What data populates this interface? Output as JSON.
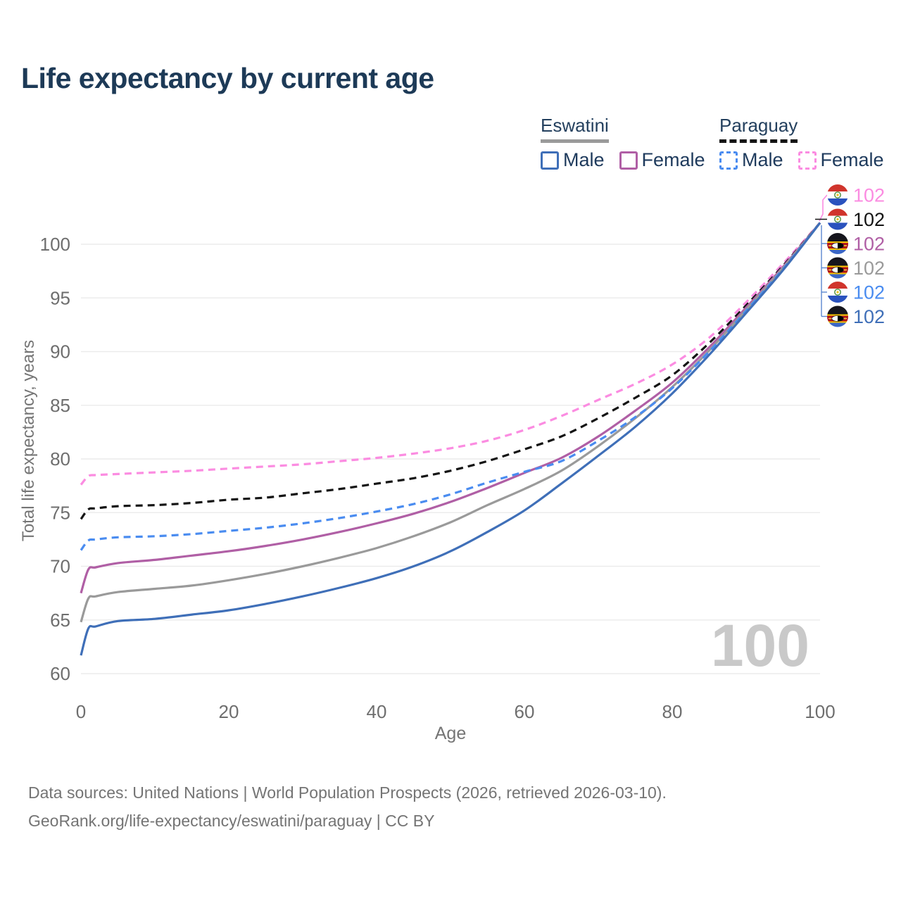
{
  "title": "Life expectancy by current age",
  "legend": {
    "groups": [
      {
        "country": "Eswatini",
        "line_style": "solid",
        "underline_color": "#9a9a9a",
        "items": [
          {
            "label": "Male",
            "color": "#3f6fb8",
            "dashed": false
          },
          {
            "label": "Female",
            "color": "#b05fa5",
            "dashed": false
          }
        ]
      },
      {
        "country": "Paraguay",
        "line_style": "dashed",
        "underline_color": "#141414",
        "items": [
          {
            "label": "Male",
            "color": "#4a8cf0",
            "dashed": true
          },
          {
            "label": "Female",
            "color": "#fb8ce1",
            "dashed": true
          }
        ]
      }
    ]
  },
  "chart_data": {
    "type": "line",
    "title": "Life expectancy by current age",
    "xlabel": "Age",
    "ylabel": "Total life expectancy, years",
    "xlim": [
      0,
      100
    ],
    "ylim": [
      60,
      103
    ],
    "xticks": [
      0,
      20,
      40,
      60,
      80,
      100
    ],
    "yticks": [
      60,
      65,
      70,
      75,
      80,
      85,
      90,
      95,
      100
    ],
    "grid": "horizontal",
    "legend_position": "top-right",
    "watermark": "100",
    "ages": [
      0,
      1,
      2,
      5,
      10,
      15,
      20,
      25,
      30,
      35,
      40,
      45,
      50,
      55,
      60,
      65,
      70,
      75,
      80,
      85,
      90,
      95,
      100
    ],
    "series": [
      {
        "name": "Paraguay Female",
        "country": "Paraguay",
        "sex": "Female",
        "flag": "py",
        "color": "#fb8ce1",
        "dashed": true,
        "end_label": "102",
        "values": [
          77.6,
          78.4,
          78.5,
          78.6,
          78.75,
          78.9,
          79.1,
          79.3,
          79.5,
          79.8,
          80.1,
          80.5,
          81.0,
          81.7,
          82.7,
          84.0,
          85.5,
          87.0,
          88.8,
          91.3,
          94.6,
          98.2,
          102
        ]
      },
      {
        "name": "Paraguay Both sexes",
        "country": "Paraguay",
        "sex": "Both",
        "flag": "py",
        "color": "#141414",
        "dashed": true,
        "end_label": "102",
        "values": [
          74.4,
          75.3,
          75.4,
          75.6,
          75.7,
          75.9,
          76.2,
          76.4,
          76.8,
          77.2,
          77.7,
          78.2,
          78.9,
          79.8,
          80.9,
          82.1,
          83.8,
          85.7,
          87.8,
          90.8,
          94.3,
          98.0,
          102
        ]
      },
      {
        "name": "Eswatini Female",
        "country": "Eswatini",
        "sex": "Female",
        "flag": "sz",
        "color": "#b05fa5",
        "dashed": false,
        "end_label": "102",
        "values": [
          67.5,
          69.7,
          69.9,
          70.3,
          70.6,
          71.0,
          71.4,
          71.9,
          72.5,
          73.2,
          74.0,
          74.9,
          76.0,
          77.3,
          78.7,
          80.1,
          82.1,
          84.5,
          87.1,
          90.4,
          94.1,
          97.9,
          102
        ]
      },
      {
        "name": "Eswatini Both sexes",
        "country": "Eswatini",
        "sex": "Both",
        "flag": "sz",
        "color": "#9a9a9a",
        "dashed": false,
        "end_label": "102",
        "values": [
          64.8,
          67.0,
          67.2,
          67.6,
          67.9,
          68.2,
          68.7,
          69.3,
          70.0,
          70.8,
          71.7,
          72.8,
          74.1,
          75.7,
          77.2,
          78.9,
          81.2,
          83.8,
          86.7,
          90.1,
          93.9,
          97.8,
          102
        ]
      },
      {
        "name": "Paraguay Male",
        "country": "Paraguay",
        "sex": "Male",
        "flag": "py",
        "color": "#4a8cf0",
        "dashed": true,
        "end_label": "102",
        "values": [
          71.5,
          72.4,
          72.5,
          72.7,
          72.8,
          73.0,
          73.3,
          73.6,
          74.0,
          74.5,
          75.1,
          75.8,
          76.7,
          77.8,
          78.8,
          79.8,
          81.7,
          83.9,
          86.6,
          90.0,
          93.8,
          97.7,
          102
        ]
      },
      {
        "name": "Eswatini Male",
        "country": "Eswatini",
        "sex": "Male",
        "flag": "sz",
        "color": "#3f6fb8",
        "dashed": false,
        "end_label": "102",
        "values": [
          61.7,
          64.2,
          64.4,
          64.9,
          65.1,
          65.5,
          65.9,
          66.5,
          67.2,
          68.0,
          68.9,
          70.0,
          71.4,
          73.2,
          75.2,
          77.7,
          80.3,
          83.0,
          86.1,
          89.7,
          93.6,
          97.6,
          102
        ]
      }
    ]
  },
  "footer": {
    "line1": "Data sources: United Nations | World Population Prospects (2026, retrieved 2026-03-10).",
    "line2": "GeoRank.org/life-expectancy/eswatini/paraguay | CC BY"
  }
}
